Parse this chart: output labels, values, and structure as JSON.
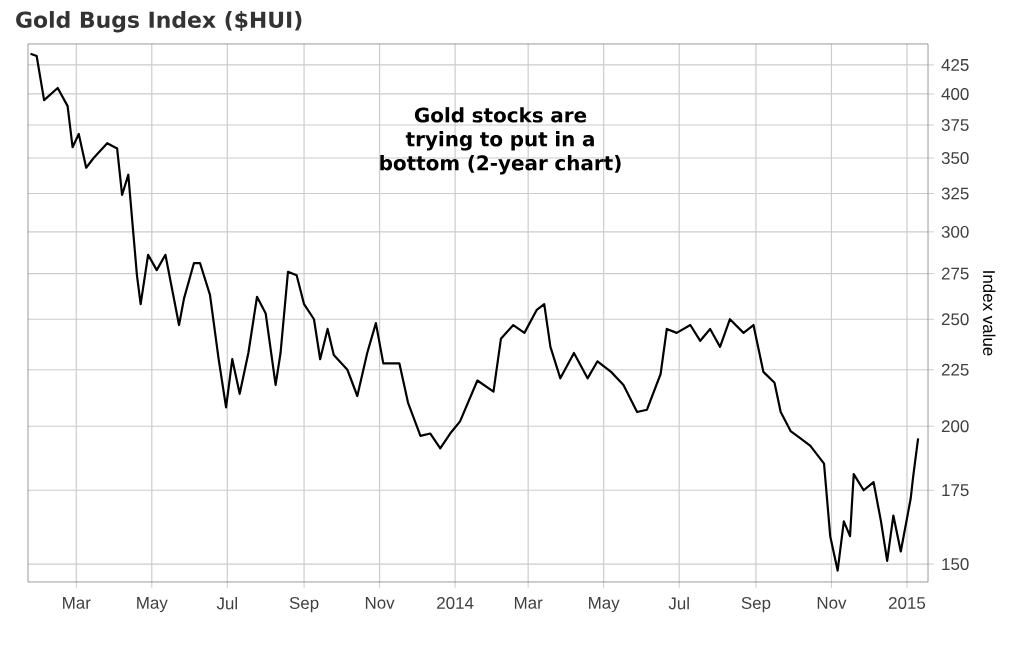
{
  "chart_data": {
    "type": "line",
    "title": "Gold Bugs Index ($HUI)",
    "ylabel": "Index value",
    "annotations": [
      "Gold stocks are trying to put in a bottom (2-year chart)"
    ],
    "log": true,
    "grid": true,
    "xlim": [
      "2013-01-21",
      "2015-01-18"
    ],
    "ylim": [
      144.5,
      444
    ],
    "xticks": [
      {
        "value": "2013-03-01",
        "label": "Mar"
      },
      {
        "value": "2013-05-01",
        "label": "May"
      },
      {
        "value": "2013-07-01",
        "label": "Jul"
      },
      {
        "value": "2013-09-01",
        "label": "Sep"
      },
      {
        "value": "2013-11-01",
        "label": "Nov"
      },
      {
        "value": "2014-01-01",
        "label": "2014"
      },
      {
        "value": "2014-03-01",
        "label": "Mar"
      },
      {
        "value": "2014-05-01",
        "label": "May"
      },
      {
        "value": "2014-07-01",
        "label": "Jul"
      },
      {
        "value": "2014-09-01",
        "label": "Sep"
      },
      {
        "value": "2014-11-01",
        "label": "Nov"
      },
      {
        "value": "2015-01-01",
        "label": "2015"
      }
    ],
    "yticks": [
      150,
      175,
      200,
      225,
      250,
      275,
      300,
      325,
      350,
      375,
      400,
      425
    ],
    "x": [
      "2013-01-23",
      "2013-01-28",
      "2013-02-03",
      "2013-02-14",
      "2013-02-22",
      "2013-02-26",
      "2013-03-03",
      "2013-03-09",
      "2013-03-15",
      "2013-03-26",
      "2013-04-03",
      "2013-04-07",
      "2013-04-12",
      "2013-04-19",
      "2013-04-22",
      "2013-04-28",
      "2013-05-05",
      "2013-05-12",
      "2013-05-23",
      "2013-05-27",
      "2013-06-04",
      "2013-06-09",
      "2013-06-17",
      "2013-06-24",
      "2013-06-30",
      "2013-07-05",
      "2013-07-11",
      "2013-07-18",
      "2013-07-25",
      "2013-08-01",
      "2013-08-09",
      "2013-08-13",
      "2013-08-19",
      "2013-08-26",
      "2013-09-01",
      "2013-09-09",
      "2013-09-14",
      "2013-09-20",
      "2013-09-25",
      "2013-10-06",
      "2013-10-14",
      "2013-10-22",
      "2013-10-29",
      "2013-11-04",
      "2013-11-17",
      "2013-11-24",
      "2013-12-04",
      "2013-12-12",
      "2013-12-20",
      "2013-12-28",
      "2014-01-05",
      "2014-01-19",
      "2014-02-01",
      "2014-02-07",
      "2014-02-17",
      "2014-02-26",
      "2014-03-08",
      "2014-03-14",
      "2014-03-19",
      "2014-03-27",
      "2014-04-07",
      "2014-04-18",
      "2014-04-26",
      "2014-05-07",
      "2014-05-17",
      "2014-05-28",
      "2014-06-05",
      "2014-06-16",
      "2014-06-21",
      "2014-06-29",
      "2014-07-10",
      "2014-07-18",
      "2014-07-26",
      "2014-08-03",
      "2014-08-11",
      "2014-08-22",
      "2014-08-30",
      "2014-09-07",
      "2014-09-16",
      "2014-09-21",
      "2014-09-29",
      "2014-10-07",
      "2014-10-15",
      "2014-10-26",
      "2014-10-31",
      "2014-11-06",
      "2014-11-11",
      "2014-11-16",
      "2014-11-19",
      "2014-11-27",
      "2014-12-05",
      "2014-12-11",
      "2014-12-16",
      "2014-12-21",
      "2014-12-27",
      "2015-01-04",
      "2015-01-06",
      "2015-01-10"
    ],
    "series": [
      {
        "color": "#000000",
        "values": [
          435,
          433,
          395,
          405,
          390,
          358,
          368,
          343,
          350,
          361,
          357,
          324,
          338,
          274,
          258,
          286,
          277,
          286,
          247,
          261,
          281,
          281,
          263,
          230,
          208,
          230,
          214,
          233,
          262,
          253,
          218,
          233,
          276,
          274,
          258,
          250,
          230,
          245,
          232,
          225,
          213,
          233,
          248,
          228,
          228,
          210,
          196,
          197,
          191,
          197,
          202,
          220,
          215,
          240,
          247,
          243,
          255,
          258,
          236,
          221,
          233,
          221,
          229,
          224,
          218,
          206,
          207,
          223,
          245,
          243,
          247,
          239,
          245,
          236,
          250,
          243,
          247,
          224,
          219,
          206,
          198,
          195,
          192,
          185,
          159,
          148,
          164,
          159,
          181,
          175,
          178,
          164,
          151,
          166,
          154,
          172,
          180,
          195
        ]
      }
    ]
  }
}
